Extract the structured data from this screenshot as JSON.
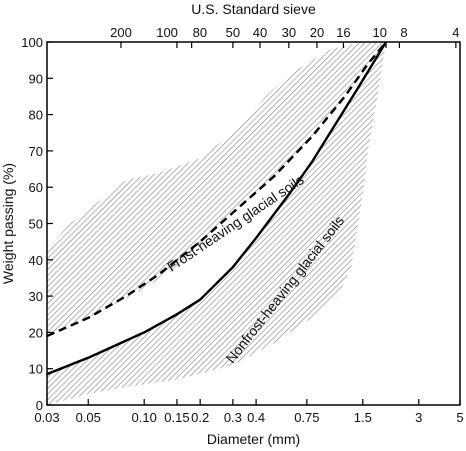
{
  "chart_data": {
    "type": "line",
    "title": "",
    "xlabel": "Diameter (mm)",
    "ylabel": "Weight passing (%)",
    "top_axis_label": "U.S. Standard sieve",
    "x_scale": "log",
    "xlim": [
      0.03,
      5
    ],
    "ylim": [
      0,
      100
    ],
    "grid": false,
    "x_ticks": [
      {
        "value": 0.03,
        "label": "0.03"
      },
      {
        "value": 0.05,
        "label": "0.05"
      },
      {
        "value": 0.1,
        "label": "0.10"
      },
      {
        "value": 0.15,
        "label": "0.15"
      },
      {
        "value": 0.2,
        "label": "0.2"
      },
      {
        "value": 0.3,
        "label": "0.3"
      },
      {
        "value": 0.4,
        "label": "0.4"
      },
      {
        "value": 0.75,
        "label": "0.75"
      },
      {
        "value": 1.5,
        "label": "1.5"
      },
      {
        "value": 3,
        "label": "3"
      },
      {
        "value": 5,
        "label": "5"
      }
    ],
    "y_ticks": [
      0,
      10,
      20,
      30,
      40,
      50,
      60,
      70,
      80,
      90,
      100
    ],
    "top_ticks": [
      {
        "value": 0.075,
        "label": "200"
      },
      {
        "value": 0.15,
        "label": "100"
      },
      {
        "value": 0.18,
        "label": "80"
      },
      {
        "value": 0.3,
        "label": "50"
      },
      {
        "value": 0.42,
        "label": "40"
      },
      {
        "value": 0.6,
        "label": "30"
      },
      {
        "value": 0.85,
        "label": "20"
      },
      {
        "value": 1.18,
        "label": "16"
      },
      {
        "value": 2.0,
        "label": "10"
      },
      {
        "value": 2.36,
        "label": "8"
      },
      {
        "value": 4.75,
        "label": "4"
      }
    ],
    "series": [
      {
        "name": "Frost-heaving glacial soils",
        "style": "dashed",
        "color": "#000000",
        "x": [
          0.03,
          0.05,
          0.08,
          0.12,
          0.2,
          0.3,
          0.5,
          0.8,
          1.2,
          1.6,
          2.0
        ],
        "y": [
          19,
          24,
          30,
          36,
          45,
          53,
          63,
          74,
          85,
          94,
          100
        ]
      },
      {
        "name": "Nonfrost-heaving glacial soils",
        "style": "solid",
        "color": "#000000",
        "x": [
          0.03,
          0.05,
          0.1,
          0.15,
          0.2,
          0.3,
          0.4,
          0.6,
          0.8,
          1.0,
          1.4,
          2.0
        ],
        "y": [
          8.5,
          13,
          20,
          25,
          29,
          38,
          46,
          58,
          67,
          75,
          87,
          100
        ]
      }
    ],
    "bands": [
      {
        "series": "Frost-heaving glacial soils",
        "upper": {
          "x": [
            0.03,
            0.04,
            0.06,
            0.08,
            0.12,
            0.2,
            0.3,
            0.45,
            0.6,
            1.0,
            1.5,
            2.0
          ],
          "y": [
            43,
            50,
            57,
            62,
            64,
            68,
            75,
            85,
            91,
            98,
            100,
            100
          ]
        },
        "lower": {
          "x": [
            0.03,
            0.05,
            0.1,
            0.15,
            0.2,
            0.3,
            0.5,
            0.8,
            1.2,
            2.0
          ],
          "y": [
            19,
            24,
            32,
            38,
            44,
            53,
            63,
            74,
            85,
            100
          ]
        }
      },
      {
        "series": "Nonfrost-heaving glacial soils",
        "upper": {
          "x": [
            0.03,
            0.05,
            0.1,
            0.15,
            0.2,
            0.3,
            0.4,
            0.6,
            0.8,
            1.0,
            1.4,
            2.0
          ],
          "y": [
            8.5,
            13,
            20,
            25,
            29,
            38,
            46,
            58,
            67,
            75,
            87,
            100
          ]
        },
        "lower": {
          "x": [
            0.03,
            0.05,
            0.08,
            0.15,
            0.3,
            0.5,
            0.8,
            1.1,
            1.3,
            1.4,
            1.5,
            1.6,
            1.8,
            2.0
          ],
          "y": [
            0,
            3,
            5,
            7,
            11,
            17,
            24,
            30,
            38,
            48,
            58,
            70,
            85,
            100
          ]
        }
      }
    ],
    "annotations": [
      {
        "text": "Frost-heaving glacial soils",
        "x": 0.32,
        "y": 49
      },
      {
        "text": "Nonfrost-heaving glacial soils",
        "x": 0.6,
        "y": 31
      }
    ]
  }
}
